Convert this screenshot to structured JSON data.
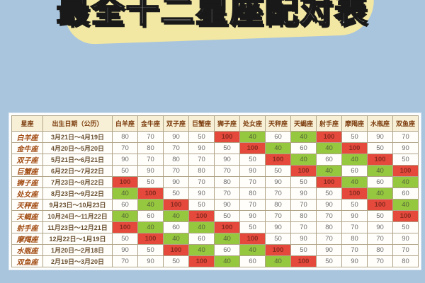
{
  "title": "最全十二星座配对表",
  "colors": {
    "background": "#a9c5de",
    "title_blob": "#f2e7a3",
    "title_fill": "#ffffff",
    "title_outline": "#191919",
    "header_bg": "#f8f0d6",
    "header_text": "#7c3d0e",
    "red_cell": "#e4493c",
    "green_cell": "#95c83e",
    "sign_text": "#a14a10"
  },
  "chart_data": {
    "type": "table",
    "title": "最全十二星座配对表",
    "corner_header": "星座",
    "date_header": "出生日期（公历）",
    "column_headers": [
      "白羊座",
      "金牛座",
      "双子座",
      "巨蟹座",
      "狮子座",
      "处女座",
      "天秤座",
      "天蝎座",
      "射手座",
      "摩羯座",
      "水瓶座",
      "双鱼座"
    ],
    "highlight_rules": {
      "red_value": 100,
      "green_value": 40
    },
    "rows": [
      {
        "sign": "白羊座",
        "dates": "3月21日～4月19日",
        "scores": [
          80,
          70,
          90,
          50,
          100,
          40,
          60,
          40,
          100,
          50,
          90,
          70
        ]
      },
      {
        "sign": "金牛座",
        "dates": "4月20日～5月20日",
        "scores": [
          70,
          80,
          70,
          90,
          50,
          100,
          40,
          60,
          40,
          100,
          50,
          90
        ]
      },
      {
        "sign": "双子座",
        "dates": "5月21日～6月21日",
        "scores": [
          90,
          70,
          80,
          70,
          90,
          50,
          100,
          40,
          60,
          40,
          100,
          50
        ]
      },
      {
        "sign": "巨蟹座",
        "dates": "6月22日～7月22日",
        "scores": [
          50,
          90,
          70,
          80,
          70,
          90,
          50,
          100,
          40,
          60,
          40,
          100
        ]
      },
      {
        "sign": "狮子座",
        "dates": "7月23日～8月22日",
        "scores": [
          100,
          50,
          90,
          70,
          80,
          70,
          90,
          50,
          100,
          40,
          60,
          40
        ]
      },
      {
        "sign": "处女座",
        "dates": "8月23日～9月22日",
        "scores": [
          40,
          100,
          50,
          90,
          70,
          80,
          70,
          90,
          50,
          100,
          40,
          60
        ]
      },
      {
        "sign": "天秤座",
        "dates": "9月23日～10月23日",
        "scores": [
          60,
          40,
          100,
          50,
          90,
          70,
          80,
          70,
          90,
          50,
          100,
          40
        ]
      },
      {
        "sign": "天蝎座",
        "dates": "10月24日～11月22日",
        "scores": [
          40,
          60,
          40,
          100,
          50,
          90,
          70,
          80,
          70,
          90,
          50,
          100
        ]
      },
      {
        "sign": "射手座",
        "dates": "11月23日～12月21日",
        "scores": [
          100,
          40,
          60,
          40,
          100,
          50,
          90,
          70,
          80,
          70,
          90,
          50
        ]
      },
      {
        "sign": "摩羯座",
        "dates": "12月22日～1月19日",
        "scores": [
          50,
          100,
          40,
          60,
          40,
          100,
          50,
          90,
          70,
          80,
          70,
          90
        ]
      },
      {
        "sign": "水瓶座",
        "dates": "1月20日～2月18日",
        "scores": [
          90,
          50,
          100,
          40,
          60,
          40,
          100,
          50,
          90,
          70,
          80,
          70
        ]
      },
      {
        "sign": "双鱼座",
        "dates": "2月19日～3月20日",
        "scores": [
          70,
          90,
          50,
          100,
          40,
          60,
          40,
          100,
          50,
          90,
          70,
          80
        ]
      }
    ]
  }
}
